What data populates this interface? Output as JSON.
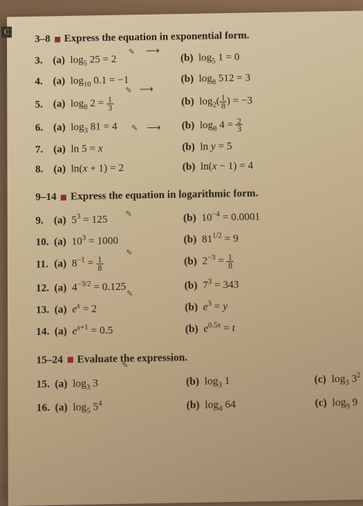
{
  "tab": "C",
  "sections": [
    {
      "range": "3–8",
      "instruction": "Express the equation in exponential form.",
      "rows": [
        {
          "n": "3.",
          "a": "log<sub>5</sub> 25 = 2",
          "b": "log<sub>5</sub> 1 = 0"
        },
        {
          "n": "4.",
          "a": "log<sub>10</sub> 0.1 = −1",
          "b": "log<sub>8</sub> 512 = 3"
        },
        {
          "n": "5.",
          "a": "log<sub>8</sub> 2 = <span class='frac'><span class='top'>1</span><span class='bot'>3</span></span>",
          "b": "log<sub>2</sub>(<span class='frac'><span class='top'>1</span><span class='bot'>8</span></span>) = −3"
        },
        {
          "n": "6.",
          "a": "log<sub>3</sub> 81 = 4",
          "b": "log<sub>8</sub> 4 = <span class='frac'><span class='top'>2</span><span class='bot'>3</span></span>"
        },
        {
          "n": "7.",
          "a": "ln 5 = <i>x</i>",
          "b": "ln <i>y</i> = 5"
        },
        {
          "n": "8.",
          "a": "ln(<i>x</i> + 1) = 2",
          "b": "ln(<i>x</i> − 1) = 4"
        }
      ]
    },
    {
      "range": "9–14",
      "instruction": "Express the equation in logarithmic form.",
      "rows": [
        {
          "n": "9.",
          "a": "5<sup>3</sup> = 125",
          "b": "10<sup>−4</sup> = 0.0001"
        },
        {
          "n": "10.",
          "a": "10<sup>3</sup> = 1000",
          "b": "81<sup>1/2</sup> = 9"
        },
        {
          "n": "11.",
          "a": "8<sup>−1</sup> = <span class='frac'><span class='top'>1</span><span class='bot'>8</span></span>",
          "b": "2<sup>−3</sup> = <span class='frac'><span class='top'>1</span><span class='bot'>8</span></span>"
        },
        {
          "n": "12.",
          "a": "4<sup>−3/2</sup> = 0.125",
          "b": "7<sup>3</sup> = 343"
        },
        {
          "n": "13.",
          "a": "<i>e</i><sup><i>x</i></sup> = 2",
          "b": "<i>e</i><sup>3</sup> = <i>y</i>"
        },
        {
          "n": "14.",
          "a": "<i>e</i><sup><i>x</i>+1</sup> = 0.5",
          "b": "<i>e</i><sup>0.5<i>x</i></sup> = <i>t</i>"
        }
      ]
    },
    {
      "range": "15–24",
      "instruction": "Evaluate the expression.",
      "rows": [
        {
          "n": "15.",
          "a": "log<sub>3</sub> 3",
          "b": "log<sub>3</sub> 1",
          "c": "log<sub>3</sub> 3<sup>2</sup>"
        },
        {
          "n": "16.",
          "a": "log<sub>5</sub> 5<sup>4</sup>",
          "b": "log<sub>4</sub> 64",
          "c": "log<sub>9</sub> 9"
        }
      ]
    }
  ]
}
